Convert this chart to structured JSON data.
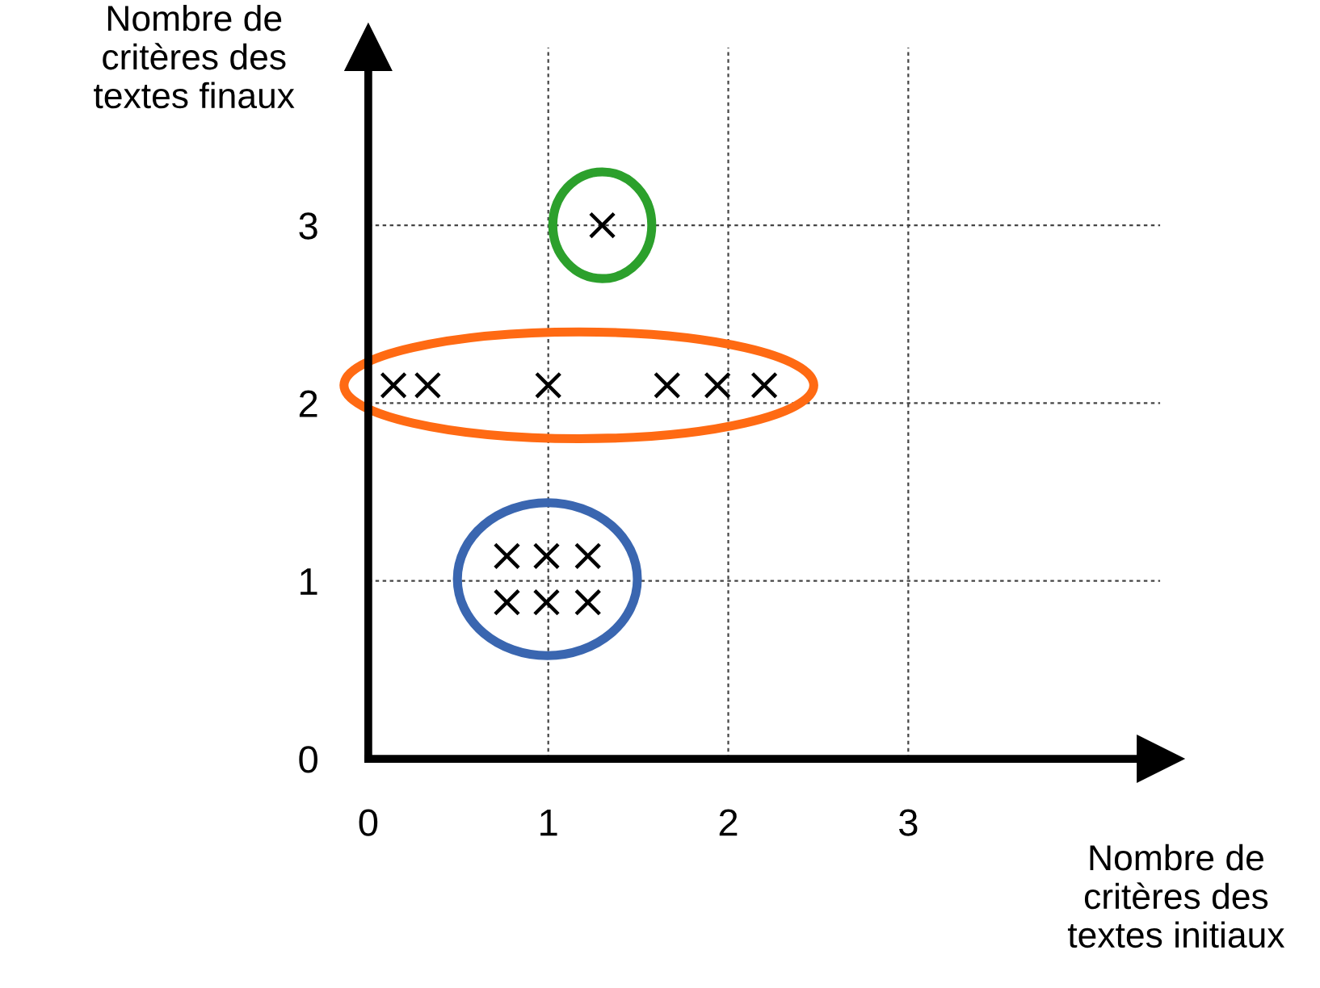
{
  "chart_data": {
    "type": "scatter",
    "xlabel": "Nombre de\ncritères des\ntextes initiaux",
    "ylabel": "Nombre de\ncritères des\ntextes finaux",
    "series": [
      {
        "color": "#000000",
        "x": [
          1.3
        ],
        "values": [
          3.0
        ]
      },
      {
        "color": "#000000",
        "x": [
          0.14,
          0.33,
          1.0,
          1.66,
          1.94,
          2.2
        ],
        "values": [
          2.1,
          2.1,
          2.1,
          2.1,
          2.1,
          2.1
        ]
      },
      {
        "color": "#000000",
        "x": [
          0.77,
          0.99,
          1.22,
          0.77,
          0.99,
          1.22
        ],
        "values": [
          1.14,
          1.14,
          1.14,
          0.88,
          0.88,
          0.88
        ]
      }
    ],
    "xlim": [
      0,
      4.4
    ],
    "ylim": [
      0,
      4
    ],
    "xticks": [
      0,
      1,
      2,
      3
    ],
    "yticks": [
      0,
      1,
      2,
      3
    ],
    "grid": true,
    "marker": "cross",
    "legend": false
  }
}
